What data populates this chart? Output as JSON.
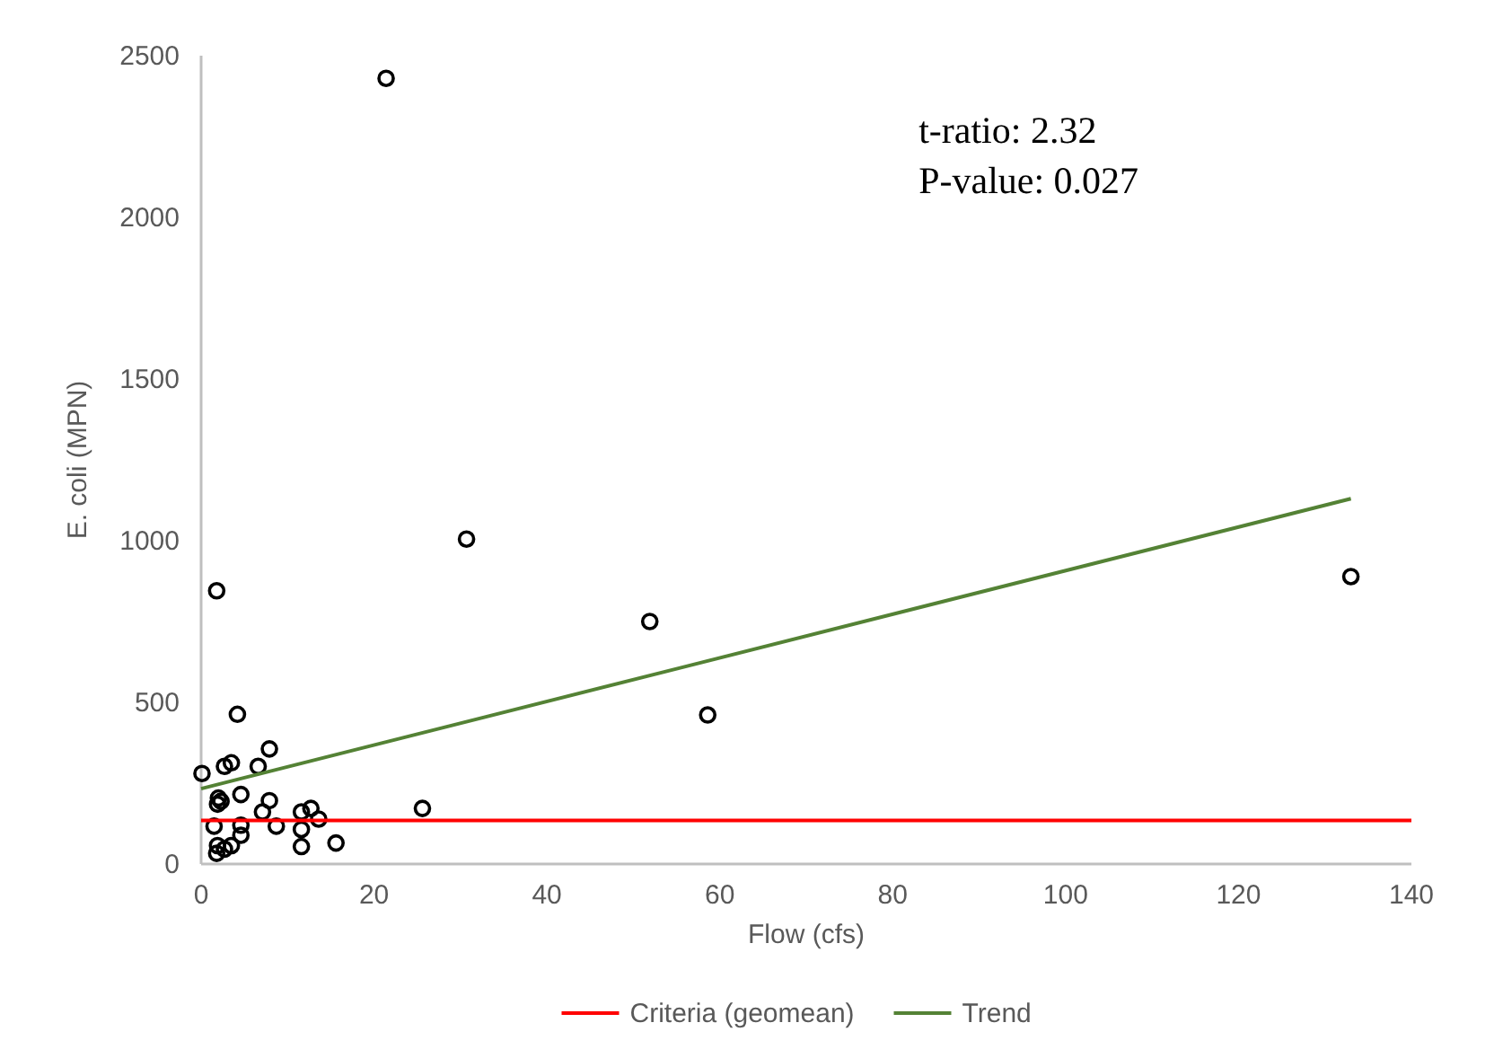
{
  "chart_data": {
    "type": "scatter",
    "xlabel": "Flow (cfs)",
    "ylabel": "E. coli (MPN)",
    "xlim": [
      0,
      140
    ],
    "ylim": [
      0,
      2500
    ],
    "xticks": [
      0,
      20,
      40,
      60,
      80,
      100,
      120,
      140
    ],
    "yticks": [
      0,
      500,
      1000,
      1500,
      2000,
      2500
    ],
    "grid": false,
    "legend": "bottom",
    "annotations": [
      "t-ratio: 2.32",
      "P-value: 0.027"
    ],
    "series": [
      {
        "type": "scatter",
        "marker": "circle",
        "color": "#000000",
        "x": [
          1.8,
          4.2,
          7.9,
          0.1,
          2.7,
          3.5,
          6.6,
          2.0,
          2.3,
          1.9,
          4.6,
          7.9,
          7.1,
          1.5,
          4.6,
          4.6,
          8.7,
          11.6,
          12.7,
          13.6,
          11.6,
          11.6,
          15.6,
          1.9,
          2.7,
          3.5,
          1.8,
          25.6,
          21.4,
          30.7,
          51.9,
          58.6,
          133
        ],
        "values": [
          845,
          463,
          356,
          280,
          302,
          313,
          302,
          204,
          194,
          185,
          215,
          196,
          161,
          117,
          120,
          89,
          117,
          161,
          172,
          139,
          107,
          54,
          65,
          57,
          46,
          57,
          33,
          172,
          2430,
          1005,
          750,
          461,
          889
        ]
      },
      {
        "type": "line",
        "marker": "none",
        "name": "Criteria (geomean)",
        "color": "#ff0000",
        "x": [
          0,
          140
        ],
        "values": [
          135,
          135
        ]
      },
      {
        "type": "line",
        "marker": "none",
        "name": "Trend",
        "color": "#548235",
        "x": [
          0,
          133
        ],
        "values": [
          233,
          1130
        ]
      }
    ]
  }
}
